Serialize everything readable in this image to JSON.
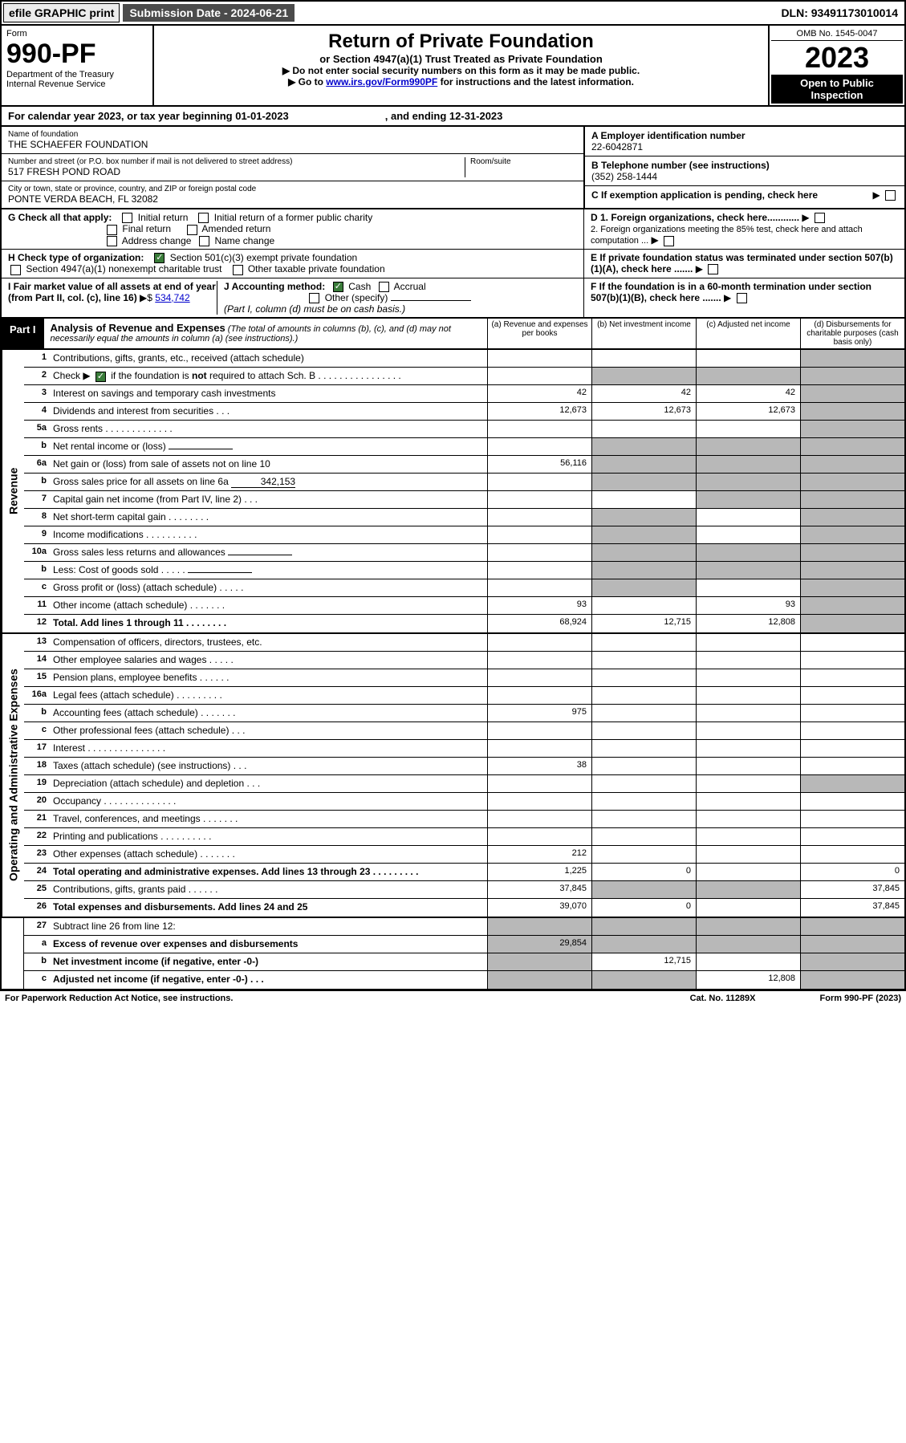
{
  "topbar": {
    "efile": "efile GRAPHIC print",
    "subdate": "Submission Date - 2024-06-21",
    "dln": "DLN: 93491173010014"
  },
  "header": {
    "form_label": "Form",
    "form_num": "990-PF",
    "dept": "Department of the Treasury",
    "irs": "Internal Revenue Service",
    "title": "Return of Private Foundation",
    "sub": "or Section 4947(a)(1) Trust Treated as Private Foundation",
    "note1": "▶ Do not enter social security numbers on this form as it may be made public.",
    "note2_a": "▶ Go to ",
    "note2_link": "www.irs.gov/Form990PF",
    "note2_b": " for instructions and the latest information.",
    "omb": "OMB No. 1545-0047",
    "year": "2023",
    "open": "Open to Public Inspection"
  },
  "calrow": {
    "a": "For calendar year 2023, or tax year beginning 01-01-2023",
    "b": ", and ending 12-31-2023"
  },
  "info": {
    "name_lbl": "Name of foundation",
    "name_val": "THE SCHAEFER FOUNDATION",
    "addr_lbl": "Number and street (or P.O. box number if mail is not delivered to street address)",
    "addr_val": "517 FRESH POND ROAD",
    "room_lbl": "Room/suite",
    "city_lbl": "City or town, state or province, country, and ZIP or foreign postal code",
    "city_val": "PONTE VERDA BEACH, FL  32082",
    "a_lbl": "A Employer identification number",
    "a_val": "22-6042871",
    "b_lbl": "B Telephone number (see instructions)",
    "b_val": "(352) 258-1444",
    "c_lbl": "C If exemption application is pending, check here",
    "d1": "D 1. Foreign organizations, check here............",
    "d2": "2. Foreign organizations meeting the 85% test, check here and attach computation ...",
    "e": "E  If private foundation status was terminated under section 507(b)(1)(A), check here .......",
    "f": "F  If the foundation is in a 60-month termination under section 507(b)(1)(B), check here ......."
  },
  "mid": {
    "g": "G Check all that apply:",
    "g1": "Initial return",
    "g2": "Initial return of a former public charity",
    "g3": "Final return",
    "g4": "Amended return",
    "g5": "Address change",
    "g6": "Name change",
    "h": "H Check type of organization:",
    "h1": "Section 501(c)(3) exempt private foundation",
    "h2": "Section 4947(a)(1) nonexempt charitable trust",
    "h3": "Other taxable private foundation",
    "i": "I Fair market value of all assets at end of year (from Part II, col. (c), line 16)",
    "i_val": "534,742",
    "j": "J Accounting method:",
    "j1": "Cash",
    "j2": "Accrual",
    "j3": "Other (specify)",
    "j_note": "(Part I, column (d) must be on cash basis.)"
  },
  "part1": {
    "tag": "Part I",
    "title": "Analysis of Revenue and Expenses",
    "note": "(The total of amounts in columns (b), (c), and (d) may not necessarily equal the amounts in column (a) (see instructions).)",
    "colA": "(a)   Revenue and expenses per books",
    "colB": "(b)   Net investment income",
    "colC": "(c)   Adjusted net income",
    "colD": "(d)  Disbursements for charitable purposes (cash basis only)"
  },
  "side": {
    "rev": "Revenue",
    "exp": "Operating and Administrative Expenses"
  },
  "rows": {
    "r1": {
      "n": "1",
      "d": "Contributions, gifts, grants, etc., received (attach schedule)"
    },
    "r2": {
      "n": "2",
      "d": "Check ▶",
      "d2": " if the foundation is not required to attach Sch. B   .   .   .   .   .   .   .   .   .   .   .   .   .   .   .   ."
    },
    "r3": {
      "n": "3",
      "d": "Interest on savings and temporary cash investments",
      "a": "42",
      "b": "42",
      "c": "42"
    },
    "r4": {
      "n": "4",
      "d": "Dividends and interest from securities   .   .   .",
      "a": "12,673",
      "b": "12,673",
      "c": "12,673"
    },
    "r5a": {
      "n": "5a",
      "d": "Gross rents    .   .   .   .   .   .   .   .   .   .   .   .   ."
    },
    "r5b": {
      "n": "b",
      "d": "Net rental income or (loss)  "
    },
    "r6a": {
      "n": "6a",
      "d": "Net gain or (loss) from sale of assets not on line 10",
      "a": "56,116"
    },
    "r6b": {
      "n": "b",
      "d": "Gross sales price for all assets on line 6a",
      "v": "342,153"
    },
    "r7": {
      "n": "7",
      "d": "Capital gain net income (from Part IV, line 2)   .   .   ."
    },
    "r8": {
      "n": "8",
      "d": "Net short-term capital gain  .   .   .   .   .   .   .   ."
    },
    "r9": {
      "n": "9",
      "d": "Income modifications  .   .   .   .   .   .   .   .   .   ."
    },
    "r10a": {
      "n": "10a",
      "d": "Gross sales less returns and allowances"
    },
    "r10b": {
      "n": "b",
      "d": "Less: Cost of goods sold    .   .   .   .   ."
    },
    "r10c": {
      "n": "c",
      "d": "Gross profit or (loss) (attach schedule)    .   .   .   .   ."
    },
    "r11": {
      "n": "11",
      "d": "Other income (attach schedule)    .   .   .   .   .   .   .",
      "a": "93",
      "c": "93"
    },
    "r12": {
      "n": "12",
      "d": "Total. Add lines 1 through 11    .   .   .   .   .   .   .   .",
      "a": "68,924",
      "b": "12,715",
      "c": "12,808"
    },
    "r13": {
      "n": "13",
      "d": "Compensation of officers, directors, trustees, etc."
    },
    "r14": {
      "n": "14",
      "d": "Other employee salaries and wages    .   .   .   .   ."
    },
    "r15": {
      "n": "15",
      "d": "Pension plans, employee benefits   .   .   .   .   .   ."
    },
    "r16a": {
      "n": "16a",
      "d": "Legal fees (attach schedule)  .   .   .   .   .   .   .   .   ."
    },
    "r16b": {
      "n": "b",
      "d": "Accounting fees (attach schedule)  .   .   .   .   .   .   .",
      "a": "975"
    },
    "r16c": {
      "n": "c",
      "d": "Other professional fees (attach schedule)    .   .   ."
    },
    "r17": {
      "n": "17",
      "d": "Interest  .   .   .   .   .   .   .   .   .   .   .   .   .   .   ."
    },
    "r18": {
      "n": "18",
      "d": "Taxes (attach schedule) (see instructions)     .   .   .",
      "a": "38"
    },
    "r19": {
      "n": "19",
      "d": "Depreciation (attach schedule) and depletion    .   .   ."
    },
    "r20": {
      "n": "20",
      "d": "Occupancy  .   .   .   .   .   .   .   .   .   .   .   .   .   ."
    },
    "r21": {
      "n": "21",
      "d": "Travel, conferences, and meetings  .   .   .   .   .   .   ."
    },
    "r22": {
      "n": "22",
      "d": "Printing and publications  .   .   .   .   .   .   .   .   .   ."
    },
    "r23": {
      "n": "23",
      "d": "Other expenses (attach schedule)  .   .   .   .   .   .   .",
      "a": "212"
    },
    "r24": {
      "n": "24",
      "d": "Total operating and administrative expenses. Add lines 13 through 23    .   .   .   .   .   .   .   .   .",
      "a": "1,225",
      "b": "0",
      "dcol": "0"
    },
    "r25": {
      "n": "25",
      "d": "Contributions, gifts, grants paid     .   .   .   .   .   .",
      "a": "37,845",
      "dcol": "37,845"
    },
    "r26": {
      "n": "26",
      "d": "Total expenses and disbursements. Add lines 24 and 25",
      "a": "39,070",
      "b": "0",
      "dcol": "37,845"
    },
    "r27": {
      "n": "27",
      "d": "Subtract line 26 from line 12:"
    },
    "r27a": {
      "n": "a",
      "d": "Excess of revenue over expenses and disbursements",
      "a": "29,854"
    },
    "r27b": {
      "n": "b",
      "d": "Net investment income (if negative, enter -0-)",
      "b": "12,715"
    },
    "r27c": {
      "n": "c",
      "d": "Adjusted net income (if negative, enter -0-)    .   .   .",
      "c": "12,808"
    }
  },
  "footer": {
    "l": "For Paperwork Reduction Act Notice, see instructions.",
    "m": "Cat. No. 11289X",
    "r": "Form 990-PF (2023)"
  }
}
